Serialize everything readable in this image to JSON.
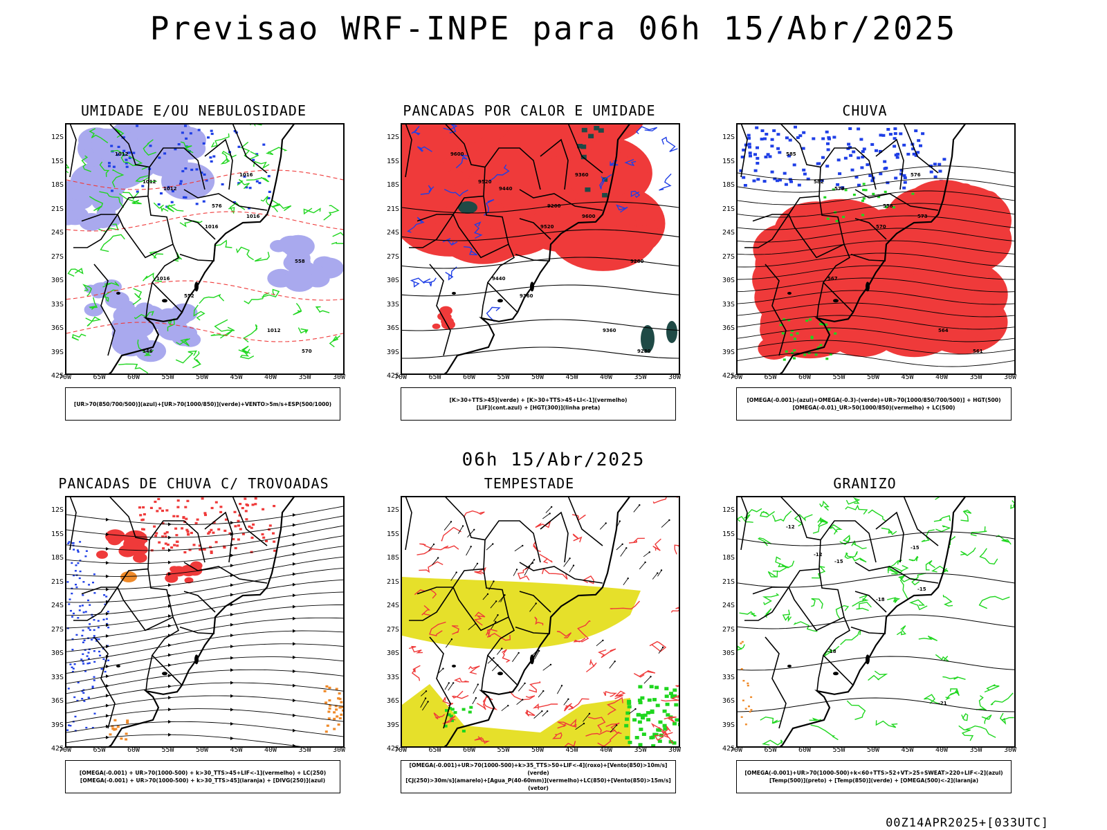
{
  "header": {
    "title": "Previsao WRF-INPE  para 06h 15/Abr/2025",
    "mid_date": "06h 15/Abr/2025",
    "footer": "00Z14APR2025+[033UTC]"
  },
  "axes": {
    "lat_labels": [
      "12S",
      "15S",
      "18S",
      "21S",
      "24S",
      "27S",
      "30S",
      "33S",
      "36S",
      "39S",
      "42S"
    ],
    "lon_labels": [
      "70W",
      "65W",
      "60W",
      "55W",
      "50W",
      "45W",
      "40W",
      "35W",
      "30W"
    ]
  },
  "colors": {
    "purple": "#a9a9ee",
    "blue": "#1f3fe6",
    "green": "#1fd61f",
    "red": "#ef3a3a",
    "darkgreen": "#1f4a46",
    "yellow": "#e6e02a",
    "orange": "#ef8a2a"
  },
  "panels": [
    {
      "id": "umidade",
      "title": "UMIDADE E/OU NEBULOSIDADE",
      "legend": [
        "[UR>70(850/700/500)](azul)+[UR>70(1000/850)](verde)+VENTO>5m/s+ESP(500/1000)"
      ],
      "contour_labels": [
        "1012",
        "1012",
        "1012",
        "1016",
        "1016",
        "1016",
        "1016",
        "1012",
        "570",
        "576",
        "558",
        "552",
        "546"
      ]
    },
    {
      "id": "pancadas_calor",
      "title": "PANCADAS POR CALOR E UMIDADE",
      "legend": [
        "[K>30+TTS>45](verde) + [K>30+TTS>45+LI<-1](vermelho)",
        "[LIF](cont.azul) + [HGT(300)](linha preta)"
      ],
      "contour_labels": [
        "9600",
        "9520",
        "9440",
        "9360",
        "9600",
        "9520",
        "9440",
        "9360",
        "9280",
        "9200",
        "9280",
        "9360"
      ]
    },
    {
      "id": "chuva",
      "title": "CHUVA",
      "legend": [
        "[OMEGA(-0.001)-(azul)+OMEGA(-0.3)-(verde)+UR>70(1000/850/700/500)] + HGT(500)",
        "[OMEGA(-0.01)_UR>50(1000/850)(vermelho) + LC(500)"
      ],
      "contour_labels": [
        "585",
        "582",
        "579",
        "576",
        "573",
        "570",
        "567",
        "564",
        "561",
        "558"
      ]
    },
    {
      "id": "trovoadas",
      "title": "PANCADAS DE CHUVA C/ TROVOADAS",
      "legend": [
        "[OMEGA(-0.001) + UR>70(1000-500) + k>30_TTS>45+LIF<-1](vermelho) + LC(250)",
        "[OMEGA(-0.001) + UR>70(1000-500) + k>30_TTS>45](laranja) + [DIVG(250)](azul)"
      ],
      "contour_labels": []
    },
    {
      "id": "tempestade",
      "title": "TEMPESTADE",
      "legend": [
        "[OMEGA(-0.001)+UR>70(1000-500)+k>35_TTS>50+LIF<-4](roxo)+[Vento(850)>10m/s](verde)",
        "[CJ(250)>30m/s](amarelo)+[Agua_P(40-60mm)](vermelho)+LC(850)+[Vento(850)>15m/s](vetor)"
      ],
      "contour_labels": []
    },
    {
      "id": "granizo",
      "title": "GRANIZO",
      "legend": [
        "[OMEGA(-0.001)+UR>70(1000-500)+k<60+TTS>52+VT>25+SWEAT>220+LIF<-2](azul)",
        "[Temp(500)](preto) + [Temp(850)](verde) + [OMEGA(500)<-2](laranja)"
      ],
      "contour_labels": [
        "-12",
        "-12",
        "-15",
        "-15",
        "-15",
        "-18",
        "-18",
        "-21"
      ]
    }
  ]
}
